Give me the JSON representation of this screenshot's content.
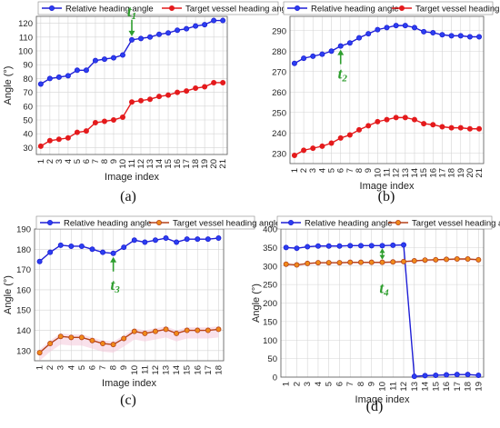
{
  "colors": {
    "relative": "#1f1fd6",
    "relative_fill": "#2b3ff0",
    "target_ab": "#e41a1c",
    "target_cd": "#b5421a",
    "target_cd_fill": "#f08a1a",
    "marker": "#2e9e2e",
    "grid": "#d4d4d4"
  },
  "chart_data": [
    {
      "type": "line",
      "panel": "(a)",
      "xlabel": "Image index",
      "ylabel": "Angle (°)",
      "x": [
        1,
        2,
        3,
        4,
        5,
        6,
        7,
        8,
        9,
        10,
        11,
        12,
        13,
        14,
        15,
        16,
        17,
        18,
        19,
        20,
        21
      ],
      "ylim": [
        25,
        125
      ],
      "yticks": [
        30,
        40,
        50,
        60,
        70,
        80,
        90,
        100,
        110,
        120
      ],
      "grid": true,
      "legend_position": "top",
      "series": [
        {
          "name": "Relative heading angle",
          "values": [
            76,
            80,
            81,
            82,
            86,
            86,
            93,
            94,
            95,
            97,
            108,
            109,
            110,
            112,
            113,
            115,
            116,
            118,
            119,
            122,
            122
          ]
        },
        {
          "name": "Target vessel heading angle",
          "values": [
            31,
            35,
            36,
            37,
            41,
            42,
            48,
            49,
            50,
            52,
            63,
            64,
            65,
            67,
            68,
            70,
            71,
            73,
            74,
            77,
            77
          ]
        }
      ],
      "marker": {
        "text": "t",
        "sub": "1",
        "x": 11
      }
    },
    {
      "type": "line",
      "panel": "(b)",
      "xlabel": "Image index",
      "ylabel": "",
      "x": [
        1,
        2,
        3,
        4,
        5,
        6,
        7,
        8,
        9,
        10,
        11,
        12,
        13,
        14,
        15,
        16,
        17,
        18,
        19,
        20,
        21
      ],
      "ylim": [
        225,
        297
      ],
      "yticks": [
        230,
        240,
        250,
        260,
        270,
        280,
        290
      ],
      "grid": true,
      "legend_position": "top",
      "series": [
        {
          "name": "Relative heading angle",
          "values": [
            274,
            276.5,
            277.5,
            278.5,
            280,
            282.5,
            284,
            286.5,
            288.5,
            290.5,
            291.5,
            292.5,
            292.5,
            291.5,
            289.5,
            289,
            288,
            287.5,
            287.5,
            287,
            287
          ]
        },
        {
          "name": "Target vessel heading angle",
          "values": [
            229,
            231.5,
            232.5,
            233.5,
            235,
            237.5,
            239,
            241.5,
            243.5,
            245.5,
            246.5,
            247.5,
            247.5,
            246.5,
            244.5,
            244,
            243,
            242.5,
            242.5,
            242,
            242
          ]
        }
      ],
      "marker": {
        "text": "t",
        "sub": "2",
        "x": 6
      }
    },
    {
      "type": "line",
      "panel": "(c)",
      "xlabel": "Image index",
      "ylabel": "Angle (°)",
      "x": [
        1,
        2,
        3,
        4,
        5,
        6,
        7,
        8,
        9,
        10,
        11,
        12,
        13,
        14,
        15,
        16,
        17,
        18
      ],
      "ylim": [
        125,
        190
      ],
      "yticks": [
        130,
        140,
        150,
        160,
        170,
        180,
        190
      ],
      "grid": true,
      "legend_position": "top",
      "series": [
        {
          "name": "Relative heading angle",
          "values": [
            174,
            178.5,
            182,
            181.5,
            181.5,
            180,
            178.5,
            178,
            181,
            184.5,
            183.5,
            184.5,
            185.5,
            183.5,
            185,
            185,
            185,
            185.5
          ]
        },
        {
          "name": "Target vessel heading angle",
          "values": [
            129,
            133.5,
            137,
            136.5,
            136.5,
            135,
            133.5,
            133,
            136,
            139.5,
            138.5,
            139.5,
            140.5,
            138.5,
            140,
            140,
            140,
            140.5
          ]
        }
      ],
      "marker": {
        "text": "t",
        "sub": "3",
        "x": 8
      }
    },
    {
      "type": "line",
      "panel": "(d)",
      "xlabel": "Image index",
      "ylabel": "Angle (°)",
      "x": [
        1,
        2,
        3,
        4,
        5,
        6,
        7,
        8,
        9,
        10,
        11,
        12,
        13,
        14,
        15,
        16,
        17,
        18,
        19
      ],
      "ylim": [
        0,
        400
      ],
      "yticks": [
        0,
        50,
        100,
        150,
        200,
        250,
        300,
        350,
        400
      ],
      "grid": true,
      "legend_position": "top",
      "series": [
        {
          "name": "Relative heading angle",
          "values": [
            350,
            348,
            352,
            354,
            354,
            354,
            355,
            355,
            355,
            355,
            356,
            357,
            2,
            4,
            5,
            6,
            7,
            7,
            5
          ]
        },
        {
          "name": "Target vessel heading angle",
          "values": [
            305,
            303,
            307,
            309,
            309,
            309,
            310,
            310,
            310,
            310,
            311,
            312,
            314,
            316,
            317,
            318,
            319,
            319,
            317
          ]
        }
      ],
      "marker": {
        "text": "t",
        "sub": "4",
        "x": 10
      }
    }
  ]
}
